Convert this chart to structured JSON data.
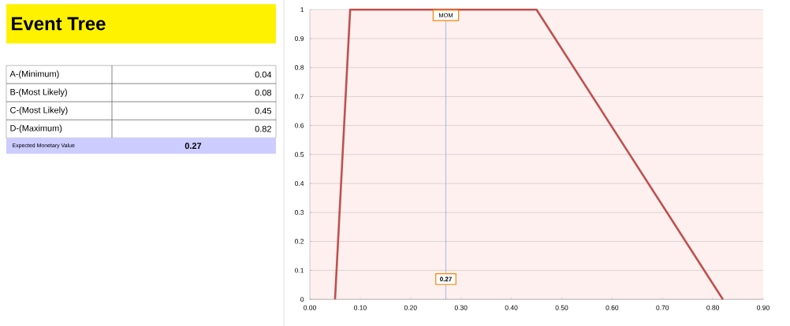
{
  "chart_data": [
    {
      "type": "other",
      "title": "Event Tree",
      "categories": [
        "A-(Minimum)",
        "B-(Most Likely)",
        "C-(Most Likely)",
        "D-(Maximum)"
      ],
      "values": [
        0.04,
        0.08,
        0.45,
        0.82
      ],
      "data_labels": true,
      "annotations": [
        "Expected Monetary Value",
        "0.27"
      ]
    },
    {
      "type": "line",
      "x": [
        0.05,
        0.08,
        0.45,
        0.82
      ],
      "series": [
        {
          "color": "#c0504d",
          "values": [
            0,
            1,
            1,
            0
          ]
        }
      ],
      "xlim": [
        0,
        0.9
      ],
      "ylim": [
        0,
        1
      ],
      "xticks": [
        {
          "value": 0,
          "label": "0.00"
        },
        {
          "value": 0.1,
          "label": "0.10"
        },
        {
          "value": 0.2,
          "label": "0.20"
        },
        {
          "value": 0.3,
          "label": "0.30"
        },
        {
          "value": 0.4,
          "label": "0.40"
        },
        {
          "value": 0.5,
          "label": "0.50"
        },
        {
          "value": 0.6,
          "label": "0.60"
        },
        {
          "value": 0.7,
          "label": "0.70"
        },
        {
          "value": 0.8,
          "label": "0.80"
        },
        {
          "value": 0.9,
          "label": "0.90"
        }
      ],
      "yticks": [
        0,
        0.1,
        0.2,
        0.3,
        0.4,
        0.5,
        0.6,
        0.7,
        0.8,
        0.9,
        1
      ],
      "grid": "y",
      "marker": "none",
      "line_style": "solid",
      "ref_lines": [
        {
          "axis": "x",
          "value": 0.27,
          "label": "MOM",
          "color": "#8ea9db"
        }
      ],
      "annotations": [
        {
          "text": "0.27",
          "x": 0.27,
          "y": 0.07
        }
      ]
    }
  ]
}
